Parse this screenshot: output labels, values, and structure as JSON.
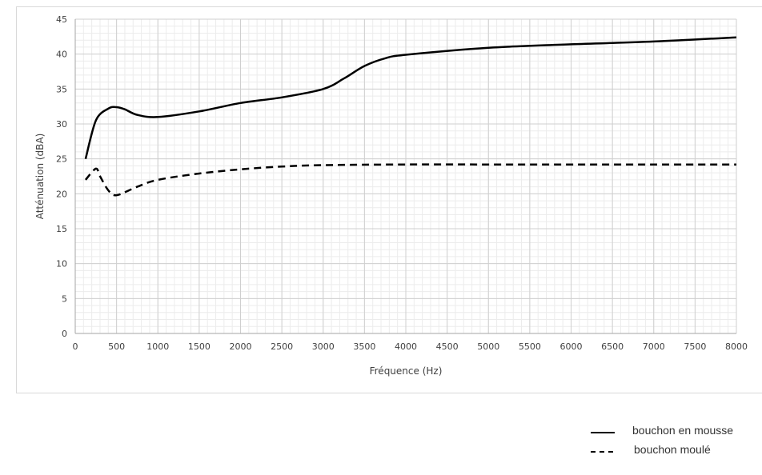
{
  "chart_data": {
    "type": "line",
    "title": "",
    "xlabel": "Fréquence (Hz)",
    "ylabel": "Atténuation (dBA)",
    "xlim": [
      0,
      8000
    ],
    "ylim": [
      0,
      45
    ],
    "xticks": [
      0,
      500,
      1000,
      1500,
      2000,
      2500,
      3000,
      3500,
      4000,
      4500,
      5000,
      5500,
      6000,
      6500,
      7000,
      7500,
      8000
    ],
    "yticks": [
      0,
      5,
      10,
      15,
      20,
      25,
      30,
      35,
      40,
      45
    ],
    "grid": true,
    "legend_position": "bottom-right",
    "series": [
      {
        "name": "bouchon en mousse",
        "style": "solid",
        "color": "#000000",
        "points": [
          [
            125,
            25
          ],
          [
            250,
            30.5
          ],
          [
            400,
            32.2
          ],
          [
            500,
            32.4
          ],
          [
            600,
            32.1
          ],
          [
            750,
            31.3
          ],
          [
            1000,
            31
          ],
          [
            1500,
            31.8
          ],
          [
            2000,
            33
          ],
          [
            2500,
            33.8
          ],
          [
            3000,
            35
          ],
          [
            3250,
            36.5
          ],
          [
            3500,
            38.3
          ],
          [
            3750,
            39.4
          ],
          [
            4000,
            39.9
          ],
          [
            5000,
            40.9
          ],
          [
            6000,
            41.4
          ],
          [
            7000,
            41.8
          ],
          [
            8000,
            42.4
          ]
        ]
      },
      {
        "name": "bouchon moulé",
        "style": "dashed",
        "color": "#000000",
        "points": [
          [
            125,
            22
          ],
          [
            250,
            23.6
          ],
          [
            300,
            22.5
          ],
          [
            400,
            20.5
          ],
          [
            500,
            19.8
          ],
          [
            750,
            21
          ],
          [
            1000,
            22
          ],
          [
            1500,
            22.9
          ],
          [
            2000,
            23.5
          ],
          [
            2500,
            23.9
          ],
          [
            3000,
            24.1
          ],
          [
            4000,
            24.2
          ],
          [
            5000,
            24.2
          ],
          [
            6000,
            24.2
          ],
          [
            7000,
            24.2
          ],
          [
            8000,
            24.2
          ]
        ]
      }
    ]
  }
}
